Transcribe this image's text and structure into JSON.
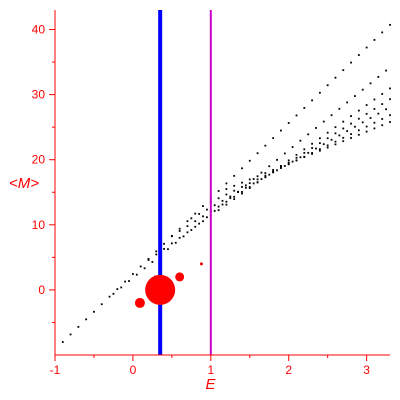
{
  "chart_data": {
    "type": "scatter",
    "xlabel": "E",
    "ylabel": "<M>",
    "xlim": [
      -1,
      3.3
    ],
    "ylim": [
      -10,
      43
    ],
    "xticks": [
      -1,
      0,
      1,
      2,
      3
    ],
    "yticks": [
      0,
      10,
      20,
      30,
      40
    ],
    "xtick_labels": [
      "-1",
      "0",
      "1",
      "2",
      "3"
    ],
    "ytick_labels": [
      "0",
      "10",
      "20",
      "30",
      "40"
    ],
    "grid": false,
    "colors": {
      "axis": "#ff0000",
      "points": "#000000",
      "markers": "#ff0000",
      "line_blue": "#0000ff",
      "line_magenta": "#cc00cc"
    },
    "vertical_lines": [
      {
        "x": 0.35,
        "color": "#0000ff"
      },
      {
        "x": 1.0,
        "color": "#cc00cc"
      }
    ],
    "bands": [
      {
        "x_start": -0.9,
        "x_end": 3.3,
        "y_start": -8,
        "slope": 11.6,
        "step": 0.1
      },
      {
        "x_start": -0.25,
        "x_end": 3.3,
        "y_start": -0.6,
        "slope": 9.8,
        "step": 0.1
      },
      {
        "x_start": 0.2,
        "x_end": 3.3,
        "y_start": 4.6,
        "slope": 8.5,
        "step": 0.1
      },
      {
        "x_start": 0.5,
        "x_end": 3.3,
        "y_start": 8.3,
        "slope": 7.5,
        "step": 0.1
      },
      {
        "x_start": 0.75,
        "x_end": 3.3,
        "y_start": 11.0,
        "slope": 6.7,
        "step": 0.1
      },
      {
        "x_start": 1.0,
        "x_end": 3.3,
        "y_start": 13.5,
        "slope": 5.8,
        "step": 0.1
      },
      {
        "x_start": 1.2,
        "x_end": 3.3,
        "y_start": 15.5,
        "slope": 4.9,
        "step": 0.1
      }
    ],
    "markers": [
      {
        "x": 0.35,
        "y": 0.0,
        "size": 3.0
      },
      {
        "x": 0.09,
        "y": -2.0,
        "size": 1.0
      },
      {
        "x": 0.6,
        "y": 2.0,
        "size": 0.9
      },
      {
        "x": 0.29,
        "y": 2.0,
        "size": 0.3
      },
      {
        "x": 0.88,
        "y": 4.0,
        "size": 0.3
      }
    ]
  }
}
